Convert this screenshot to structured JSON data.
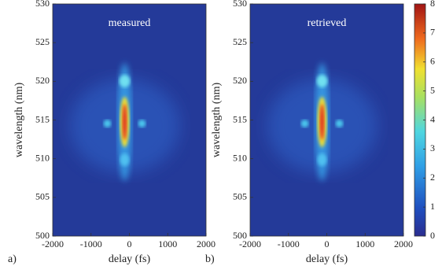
{
  "chart_data": [
    {
      "type": "heatmap",
      "title": "measured",
      "panel_label": "a)",
      "xlabel": "delay (fs)",
      "ylabel": "wavelength (nm)",
      "xlim": [
        -2000,
        2000
      ],
      "xticks": [
        -2000,
        -1000,
        0,
        1000,
        2000
      ],
      "ylim": [
        500,
        530
      ],
      "yticks": [
        500,
        505,
        510,
        515,
        520,
        525,
        530
      ]
    },
    {
      "type": "heatmap",
      "title": "retrieved",
      "panel_label": "b)",
      "xlabel": "delay (fs)",
      "ylabel": "wavelength (nm)",
      "xlim": [
        -2000,
        2000
      ],
      "xticks": [
        -2000,
        -1000,
        0,
        1000,
        2000
      ],
      "ylim": [
        500,
        530
      ],
      "yticks": [
        500,
        505,
        510,
        515,
        520,
        525,
        530
      ],
      "clim": [
        0,
        8
      ],
      "cticks": [
        0,
        1,
        2,
        3,
        4,
        5,
        6,
        7,
        8
      ]
    }
  ]
}
